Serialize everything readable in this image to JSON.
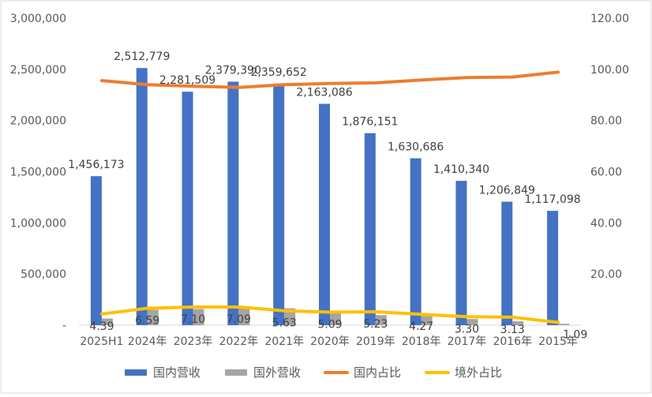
{
  "chart_data": {
    "type": "bar+line",
    "categories": [
      "2025H1",
      "2024年",
      "2023年",
      "2022年",
      "2021年",
      "2020年",
      "2019年",
      "2018年",
      "2017年",
      "2016年",
      "2015年"
    ],
    "bar_series": [
      {
        "name": "国内营收",
        "color": "#4472C4",
        "axis": "left",
        "values": [
          1456173,
          2512779,
          2281509,
          2379390,
          2359652,
          2163086,
          1876151,
          1630686,
          1410340,
          1206849,
          1117098
        ],
        "labels": [
          "1,456,173",
          "2,512,779",
          "2,281,509",
          "2,379,390",
          "2,359,652",
          "2,163,086",
          "1,876,151",
          "1,630,686",
          "1,410,340",
          "1,206,849",
          "1,117,098"
        ]
      },
      {
        "name": "国外营收",
        "color": "#A5A5A5",
        "axis": "left",
        "values": [
          65000,
          150000,
          158000,
          180000,
          165000,
          120000,
          98000,
          88000,
          60000,
          38000,
          14000
        ]
      }
    ],
    "line_series": [
      {
        "name": "国内占比",
        "color": "#ED7D31",
        "axis": "right",
        "values": [
          95.61,
          94.0,
          93.41,
          92.9,
          94.0,
          94.5,
          94.7,
          95.8,
          96.8,
          97.0,
          98.9
        ]
      },
      {
        "name": "境外占比",
        "color": "#FFC000",
        "axis": "right",
        "values": [
          4.39,
          6.59,
          7.1,
          7.09,
          5.63,
          5.09,
          5.23,
          4.27,
          3.3,
          3.13,
          1.09
        ],
        "labels": [
          "4.39",
          "6.59",
          "7.10",
          "7.09",
          "5.63",
          "5.09",
          "5.23",
          "4.27",
          "3.30",
          "3.13",
          "1.09"
        ]
      }
    ],
    "y_left": {
      "range": [
        0,
        3000000
      ],
      "ticks": [
        "-",
        "500,000",
        "1,000,000",
        "1,500,000",
        "2,000,000",
        "2,500,000",
        "3,000,000"
      ]
    },
    "y_right": {
      "range": [
        0,
        120
      ],
      "ticks": [
        "",
        "20.00",
        "40.00",
        "60.00",
        "80.00",
        "100.00",
        "120.00"
      ]
    },
    "grid": false,
    "legend": {
      "position": "bottom",
      "entries": [
        {
          "label": "国内营收",
          "color": "#4472C4",
          "shape": "rect"
        },
        {
          "label": "国外营收",
          "color": "#A5A5A5",
          "shape": "rect"
        },
        {
          "label": "国内占比",
          "color": "#ED7D31",
          "shape": "line"
        },
        {
          "label": "境外占比",
          "color": "#FFC000",
          "shape": "line"
        }
      ]
    }
  }
}
